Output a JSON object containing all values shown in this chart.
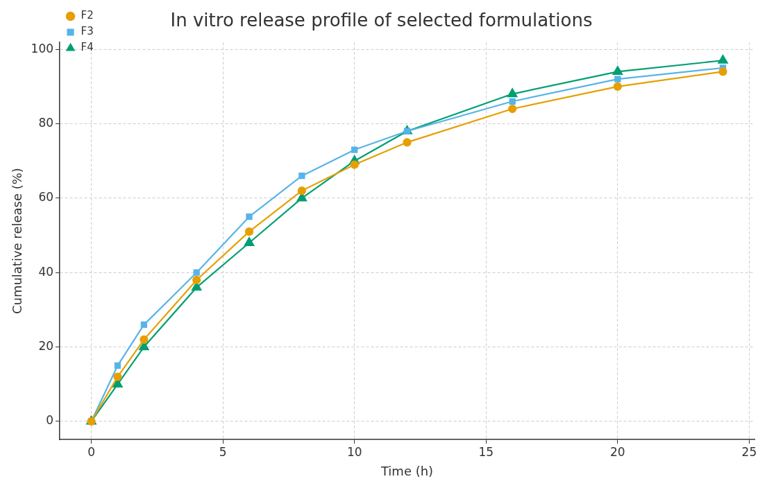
{
  "chart_data": {
    "type": "line",
    "title": "In vitro release profile of selected formulations",
    "xlabel": "Time (h)",
    "ylabel": "Cumulative release (%)",
    "x": [
      0,
      1,
      2,
      4,
      6,
      8,
      10,
      12,
      16,
      20,
      24
    ],
    "series": [
      {
        "name": "F2",
        "color": "#e69f00",
        "marker": "circle",
        "values": [
          0,
          12,
          22,
          38,
          51,
          62,
          69,
          75,
          84,
          90,
          94
        ]
      },
      {
        "name": "F3",
        "color": "#56b4e9",
        "marker": "square",
        "values": [
          0,
          15,
          26,
          40,
          55,
          66,
          73,
          78,
          86,
          92,
          95
        ]
      },
      {
        "name": "F4",
        "color": "#009e73",
        "marker": "triangle",
        "values": [
          0,
          10,
          20,
          36,
          48,
          60,
          70,
          78,
          88,
          94,
          97
        ]
      }
    ],
    "xlim": [
      -1.2,
      25.2
    ],
    "xticks": [
      0,
      5,
      10,
      15,
      20,
      25
    ],
    "ylim": [
      -4.85,
      101.85
    ],
    "yticks": [
      0,
      20,
      40,
      60,
      80,
      100
    ],
    "grid": true,
    "legend": "top left",
    "line_style": "solid"
  }
}
